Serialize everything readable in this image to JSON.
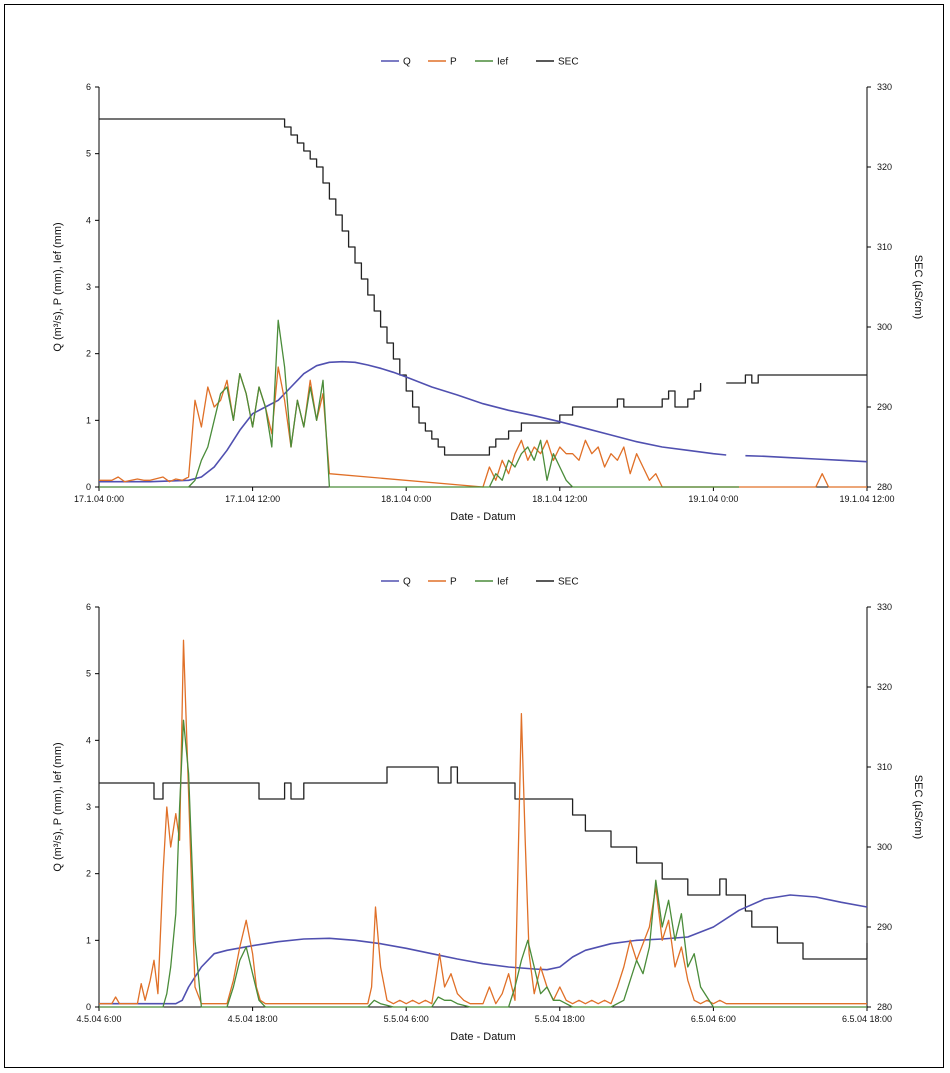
{
  "chart_data": [
    {
      "type": "line",
      "xlabel": "Date - Datum",
      "ylabel": "Q (m³/s), P (mm), Ief (mm)",
      "y2label": "SEC (µS/cm)",
      "x_ticks": [
        "17.1.04 0:00",
        "17.1.04 12:00",
        "18.1.04 0:00",
        "18.1.04 12:00",
        "19.1.04 0:00",
        "19.1.04 12:00"
      ],
      "xlim_hours": [
        0,
        60
      ],
      "ylim": [
        0,
        6
      ],
      "y_ticks": [
        "0",
        "1",
        "2",
        "3",
        "4",
        "5",
        "6"
      ],
      "y2lim": [
        280,
        330
      ],
      "y2_ticks": [
        "280",
        "290",
        "300",
        "310",
        "320",
        "330"
      ],
      "legend_position": "top-center",
      "series": [
        {
          "name": "Q",
          "axis": "left",
          "color": "#5050b0",
          "x": [
            0,
            4,
            7,
            8,
            9,
            10,
            11,
            12,
            13,
            14,
            15,
            16,
            17,
            18,
            19,
            20,
            21,
            22,
            23,
            24,
            26,
            28,
            30,
            32,
            34,
            36,
            38,
            40,
            42,
            44,
            46,
            48,
            49
          ],
          "y": [
            0.08,
            0.08,
            0.1,
            0.15,
            0.3,
            0.55,
            0.85,
            1.1,
            1.2,
            1.3,
            1.5,
            1.7,
            1.82,
            1.87,
            1.88,
            1.87,
            1.83,
            1.78,
            1.72,
            1.65,
            1.5,
            1.38,
            1.25,
            1.15,
            1.07,
            0.98,
            0.88,
            0.78,
            0.68,
            0.6,
            0.55,
            0.5,
            0.48
          ]
        },
        {
          "name": "Q",
          "axis": "left",
          "color": "#5050b0",
          "x": [
            50.5,
            52,
            54,
            56,
            58,
            60
          ],
          "y": [
            0.47,
            0.46,
            0.44,
            0.42,
            0.4,
            0.38
          ]
        },
        {
          "name": "P",
          "axis": "left",
          "color": "#e07028",
          "x": [
            0,
            1,
            1.5,
            2,
            3,
            3.5,
            4,
            5,
            5.5,
            6,
            6.5,
            7,
            7.5,
            8,
            8.5,
            9,
            9.5,
            10,
            10.5,
            11,
            11.5,
            12,
            12.5,
            13,
            13.5,
            14,
            14.5,
            15,
            15.5,
            16,
            16.5,
            17,
            17.5,
            18,
            30,
            30.5,
            31,
            31.5,
            32,
            32.5,
            33,
            33.5,
            34,
            34.5,
            35,
            35.5,
            36,
            36.5,
            37,
            37.5,
            38,
            38.5,
            39,
            39.5,
            40,
            40.5,
            41,
            41.5,
            42,
            42.5,
            43,
            43.5,
            44,
            44.5,
            45,
            47,
            48,
            56,
            56.5,
            57,
            57.5,
            58,
            60
          ],
          "y": [
            0.1,
            0.1,
            0.15,
            0.08,
            0.12,
            0.1,
            0.1,
            0.15,
            0.08,
            0.12,
            0.1,
            0.15,
            1.3,
            0.9,
            1.5,
            1.2,
            1.3,
            1.6,
            1.0,
            1.7,
            1.4,
            0.9,
            1.5,
            1.2,
            0.8,
            1.8,
            1.3,
            0.6,
            1.3,
            0.9,
            1.6,
            1.0,
            1.4,
            0.2,
            0.0,
            0.3,
            0.1,
            0.4,
            0.2,
            0.5,
            0.7,
            0.4,
            0.6,
            0.5,
            0.7,
            0.4,
            0.6,
            0.5,
            0.5,
            0.4,
            0.7,
            0.5,
            0.6,
            0.3,
            0.5,
            0.4,
            0.6,
            0.2,
            0.5,
            0.3,
            0.1,
            0.2,
            0.0,
            0.0,
            0.0,
            0.0,
            0.0,
            0.0,
            0.2,
            0.0,
            0.0,
            0.0,
            0.0
          ]
        },
        {
          "name": "Ief",
          "axis": "left",
          "color": "#4a8c3a",
          "x": [
            0,
            6,
            7,
            7.5,
            8,
            8.5,
            9,
            9.5,
            10,
            10.5,
            11,
            11.5,
            12,
            12.5,
            13,
            13.5,
            14,
            14.5,
            15,
            15.5,
            16,
            16.5,
            17,
            17.5,
            18,
            18.5,
            19,
            30,
            30.5,
            31,
            31.5,
            32,
            32.5,
            33,
            33.5,
            34,
            34.5,
            35,
            35.5,
            36,
            36.5,
            37,
            37.5,
            38,
            38.5,
            39,
            39.5,
            40,
            41,
            50
          ],
          "y": [
            0.0,
            0.0,
            0.0,
            0.1,
            0.4,
            0.6,
            1.0,
            1.4,
            1.5,
            1.0,
            1.7,
            1.4,
            0.9,
            1.5,
            1.2,
            0.6,
            2.5,
            1.8,
            0.6,
            1.3,
            0.9,
            1.5,
            1.0,
            1.6,
            0.0,
            0.0,
            0.0,
            0.0,
            0.0,
            0.2,
            0.1,
            0.4,
            0.3,
            0.5,
            0.6,
            0.4,
            0.7,
            0.1,
            0.5,
            0.3,
            0.1,
            0.0,
            0.0,
            0.0,
            0.0,
            0.0,
            0.0,
            0.0,
            0.0,
            0.0
          ]
        },
        {
          "name": "SEC",
          "axis": "right",
          "color": "#222222",
          "x": [
            0,
            14,
            14.5,
            15,
            15.5,
            16,
            16.5,
            17,
            17.5,
            18,
            18.5,
            19,
            19.5,
            20,
            20.5,
            21,
            21.5,
            22,
            22.5,
            23,
            23.5,
            24,
            24.5,
            25,
            25.5,
            26,
            26.5,
            27,
            27.5,
            28,
            28.5,
            29,
            29.5,
            30,
            30.5,
            31,
            32,
            33,
            34,
            35,
            36,
            37,
            38,
            39,
            39.5,
            40,
            40.5,
            41,
            41.5,
            42,
            42.5,
            43,
            43.5,
            44,
            44.5,
            45,
            45.5,
            46,
            46.5,
            47
          ],
          "y": [
            326,
            326,
            325,
            324,
            323,
            322,
            321,
            320,
            318,
            316,
            314,
            312,
            310,
            308,
            306,
            304,
            302,
            300,
            298,
            296,
            294,
            292,
            290,
            288,
            287,
            286,
            285,
            284,
            284,
            284,
            284,
            284,
            284,
            284,
            285,
            286,
            287,
            288,
            288,
            288,
            289,
            290,
            290,
            290,
            290,
            290,
            291,
            290,
            290,
            290,
            290,
            290,
            290,
            291,
            292,
            290,
            290,
            291,
            292,
            293
          ]
        },
        {
          "name": "SEC",
          "axis": "right",
          "color": "#222222",
          "x": [
            49,
            50,
            50.5,
            51,
            51.5,
            52,
            54,
            56,
            58,
            60
          ],
          "y": [
            293,
            293,
            294,
            293,
            294,
            294,
            294,
            294,
            294,
            294
          ]
        }
      ]
    },
    {
      "type": "line",
      "xlabel": "Date - Datum",
      "ylabel": "Q (m³/s), P (mm), Ief (mm)",
      "y2label": "SEC (µS/cm)",
      "x_ticks": [
        "4.5.04 6:00",
        "4.5.04 18:00",
        "5.5.04 6:00",
        "5.5.04 18:00",
        "6.5.04 6:00",
        "6.5.04 18:00"
      ],
      "xlim_hours": [
        0,
        60
      ],
      "ylim": [
        0,
        6
      ],
      "y_ticks": [
        "0",
        "1",
        "2",
        "3",
        "4",
        "5",
        "6"
      ],
      "y2lim": [
        280,
        330
      ],
      "y2_ticks": [
        "280",
        "290",
        "300",
        "310",
        "320",
        "330"
      ],
      "legend_position": "top-center",
      "series": [
        {
          "name": "Q",
          "axis": "left",
          "color": "#5050b0",
          "x": [
            0,
            5,
            6,
            6.5,
            7,
            8,
            9,
            10,
            12,
            14,
            16,
            18,
            20,
            22,
            24,
            26,
            28,
            30,
            32,
            34,
            35,
            36,
            37,
            38,
            40,
            42,
            44,
            46,
            48,
            50,
            52,
            54,
            56,
            58,
            60
          ],
          "y": [
            0.05,
            0.05,
            0.05,
            0.1,
            0.3,
            0.6,
            0.8,
            0.85,
            0.92,
            0.98,
            1.02,
            1.03,
            1.0,
            0.95,
            0.88,
            0.8,
            0.72,
            0.65,
            0.6,
            0.57,
            0.56,
            0.6,
            0.75,
            0.85,
            0.95,
            1.0,
            1.02,
            1.05,
            1.2,
            1.45,
            1.62,
            1.68,
            1.65,
            1.57,
            1.5
          ]
        },
        {
          "name": "P",
          "axis": "left",
          "color": "#e07028",
          "x": [
            0,
            1,
            1.3,
            1.6,
            2,
            3,
            3.3,
            3.6,
            4,
            4.3,
            4.6,
            5,
            5.3,
            5.6,
            6,
            6.3,
            6.6,
            7,
            7.5,
            8,
            8.3,
            8.6,
            9,
            10,
            10.5,
            11,
            11.5,
            12,
            12.3,
            12.6,
            13,
            14,
            20,
            21,
            21.3,
            21.6,
            22,
            22.5,
            23,
            23.5,
            24,
            24.5,
            25,
            25.5,
            26,
            26.3,
            26.6,
            27,
            27.5,
            28,
            28.5,
            29,
            30,
            30.5,
            31,
            31.5,
            32,
            32.5,
            33,
            33.3,
            33.6,
            34,
            34.5,
            35,
            35.5,
            36,
            36.5,
            37,
            37.5,
            38,
            38.5,
            39,
            39.5,
            40,
            40.5,
            41,
            41.5,
            42,
            43,
            43.5,
            44,
            44.5,
            45,
            45.5,
            46,
            46.5,
            47,
            47.5,
            48,
            48.5,
            49,
            50,
            60
          ],
          "y": [
            0.05,
            0.05,
            0.15,
            0.05,
            0.05,
            0.05,
            0.35,
            0.1,
            0.4,
            0.7,
            0.2,
            2.0,
            3.0,
            2.4,
            2.9,
            2.5,
            5.5,
            3.2,
            0.3,
            0.05,
            0.05,
            0.05,
            0.05,
            0.05,
            0.4,
            0.9,
            1.3,
            0.8,
            0.3,
            0.1,
            0.05,
            0.05,
            0.05,
            0.05,
            0.3,
            1.5,
            0.6,
            0.1,
            0.05,
            0.1,
            0.05,
            0.1,
            0.05,
            0.1,
            0.05,
            0.4,
            0.8,
            0.3,
            0.5,
            0.2,
            0.1,
            0.05,
            0.05,
            0.3,
            0.05,
            0.2,
            0.5,
            0.1,
            4.4,
            2.5,
            0.8,
            0.2,
            0.6,
            0.3,
            0.1,
            0.3,
            0.1,
            0.05,
            0.1,
            0.05,
            0.1,
            0.05,
            0.1,
            0.05,
            0.3,
            0.6,
            1.0,
            0.7,
            1.2,
            1.8,
            1.0,
            1.3,
            0.6,
            0.9,
            0.4,
            0.1,
            0.05,
            0.1,
            0.05,
            0.1,
            0.05,
            0.05,
            0.05
          ]
        },
        {
          "name": "Ief",
          "axis": "left",
          "color": "#4a8c3a",
          "x": [
            0,
            5,
            5.3,
            5.6,
            6,
            6.3,
            6.6,
            7,
            7.5,
            8,
            10,
            10.5,
            11,
            11.5,
            12,
            12.5,
            13,
            20,
            21,
            21.5,
            22,
            23,
            25,
            26,
            26.5,
            27,
            27.5,
            28,
            29,
            31,
            32,
            32.5,
            33,
            33.5,
            34,
            34.5,
            35,
            35.5,
            36,
            36.5,
            37,
            38,
            40,
            41,
            41.5,
            42,
            42.5,
            43,
            43.5,
            44,
            44.5,
            45,
            45.5,
            46,
            46.5,
            47,
            48,
            60
          ],
          "y": [
            0.0,
            0.0,
            0.2,
            0.6,
            1.4,
            3.0,
            4.3,
            3.5,
            1.0,
            0.0,
            0.0,
            0.3,
            0.7,
            0.9,
            0.5,
            0.1,
            0.0,
            0.0,
            0.0,
            0.1,
            0.05,
            0.0,
            0.0,
            0.0,
            0.15,
            0.1,
            0.1,
            0.05,
            0.0,
            0.0,
            0.0,
            0.3,
            0.7,
            1.0,
            0.6,
            0.2,
            0.3,
            0.1,
            0.1,
            0.05,
            0.0,
            0.0,
            0.0,
            0.1,
            0.4,
            0.7,
            0.5,
            0.9,
            1.9,
            1.2,
            1.6,
            1.0,
            1.4,
            0.6,
            0.8,
            0.3,
            0.0,
            0.0
          ]
        },
        {
          "name": "SEC",
          "axis": "right",
          "color": "#222222",
          "x": [
            0,
            4,
            4.3,
            4.6,
            5,
            12,
            12.5,
            13,
            14,
            14.5,
            15,
            15.5,
            16,
            22,
            22.5,
            23,
            26,
            26.5,
            27,
            27.5,
            28,
            32,
            32.5,
            33,
            34,
            35,
            36,
            37,
            38,
            39,
            40,
            41,
            42,
            43,
            44,
            45,
            46,
            47,
            48,
            48.5,
            49,
            49.5,
            50,
            50.5,
            51,
            51.5,
            52,
            53,
            54,
            55,
            56,
            57,
            58,
            58.5,
            59,
            60
          ],
          "y": [
            308,
            308,
            306,
            306,
            308,
            308,
            306,
            306,
            306,
            308,
            306,
            306,
            308,
            308,
            310,
            310,
            310,
            308,
            308,
            310,
            308,
            308,
            306,
            306,
            306,
            306,
            306,
            304,
            302,
            302,
            300,
            300,
            298,
            298,
            296,
            296,
            294,
            294,
            294,
            296,
            294,
            294,
            294,
            292,
            290,
            290,
            290,
            288,
            288,
            286,
            286,
            286,
            286,
            286,
            286,
            288
          ]
        }
      ]
    }
  ],
  "legends": [
    [
      {
        "name": "Q",
        "color": "#5050b0"
      },
      {
        "name": "P",
        "color": "#e07028"
      },
      {
        "name": "Ief",
        "color": "#4a8c3a"
      },
      {
        "name": "SEC",
        "color": "#222222"
      }
    ],
    [
      {
        "name": "Q",
        "color": "#5050b0"
      },
      {
        "name": "P",
        "color": "#e07028"
      },
      {
        "name": "Ief",
        "color": "#4a8c3a"
      },
      {
        "name": "SEC",
        "color": "#222222"
      }
    ]
  ]
}
